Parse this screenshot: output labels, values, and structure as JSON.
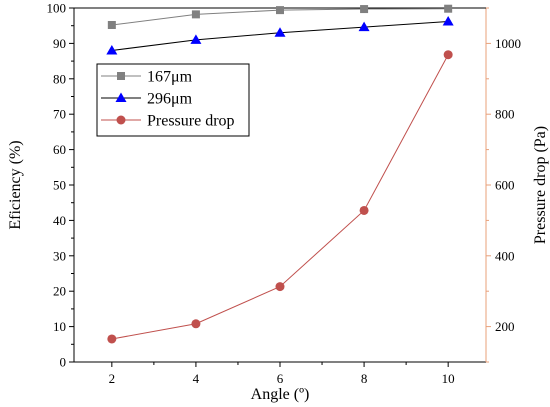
{
  "chart_data": {
    "type": "line",
    "xlabel": "Angle (º)",
    "ylabel_left": "Eficiency (%)",
    "ylabel_right": "Pressure drop (Pa)",
    "x": [
      2,
      4,
      6,
      8,
      10
    ],
    "xlim": [
      1.1,
      10.9
    ],
    "ylim_left": [
      0,
      100
    ],
    "ylim_right": [
      100,
      1100
    ],
    "x_ticks": [
      2,
      4,
      6,
      8,
      10
    ],
    "y_ticks_left": [
      0,
      10,
      20,
      30,
      40,
      50,
      60,
      70,
      80,
      90,
      100
    ],
    "y_ticks_right": [
      200,
      400,
      600,
      800,
      1000
    ],
    "grid": false,
    "legend_position": "upper-left",
    "series": [
      {
        "name": "167μm",
        "axis": "left",
        "marker": "square",
        "color": "#808080",
        "values": [
          95.2,
          98.2,
          99.4,
          99.7,
          99.8
        ]
      },
      {
        "name": "296μm",
        "axis": "left",
        "marker": "triangle",
        "color": "#0000ff",
        "line_color": "#000000",
        "values": [
          88.0,
          91.0,
          93.0,
          94.6,
          96.2
        ]
      },
      {
        "name": "Pressure drop",
        "axis": "right",
        "marker": "circle",
        "color": "#c0504d",
        "values": [
          165,
          208,
          313,
          528,
          968
        ]
      }
    ]
  },
  "colors": {
    "left_axis": "#000000",
    "right_axis": "#e8a07a",
    "bottom_axis": "#000000"
  }
}
